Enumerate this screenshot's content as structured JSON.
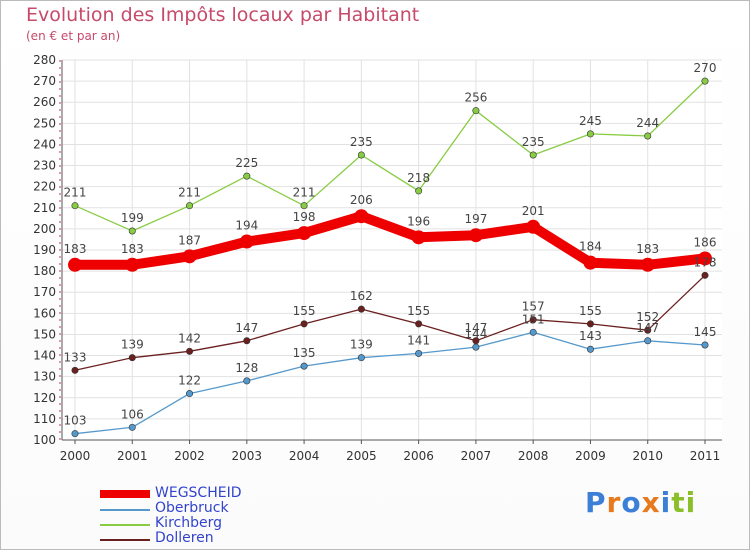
{
  "chart_data": {
    "type": "line",
    "title": "Evolution des Impôts locaux par Habitant",
    "subtitle": "(en € et par an)",
    "xlabel": "",
    "ylabel": "",
    "ylim": [
      100,
      280
    ],
    "yticks": [
      100,
      110,
      120,
      130,
      140,
      150,
      160,
      170,
      180,
      190,
      200,
      210,
      220,
      230,
      240,
      250,
      260,
      270,
      280
    ],
    "categories": [
      "2000",
      "2001",
      "2002",
      "2003",
      "2004",
      "2005",
      "2006",
      "2007",
      "2008",
      "2009",
      "2010",
      "2011"
    ],
    "series": [
      {
        "name": "WEGSCHEID",
        "color": "#ee0000",
        "values": [
          183,
          183,
          187,
          194,
          198,
          206,
          196,
          197,
          201,
          184,
          183,
          186
        ]
      },
      {
        "name": "Oberbruck",
        "color": "#5599cc",
        "values": [
          103,
          106,
          122,
          128,
          135,
          139,
          141,
          144,
          151,
          143,
          147,
          145
        ]
      },
      {
        "name": "Kirchberg",
        "color": "#88cc44",
        "values": [
          211,
          199,
          211,
          225,
          211,
          235,
          218,
          256,
          235,
          245,
          244,
          270
        ]
      },
      {
        "name": "Dolleren",
        "color": "#6b2020",
        "values": [
          133,
          139,
          142,
          147,
          155,
          162,
          155,
          147,
          157,
          155,
          152,
          178
        ]
      }
    ],
    "legend_position": "bottom-left"
  },
  "logo": {
    "text": "Proxiti",
    "letters": [
      "P",
      "r",
      "o",
      "x",
      "i",
      "t",
      "i"
    ],
    "colors": [
      "#3b7fd6",
      "#e67a1e",
      "#3b7fd6",
      "#e67a1e",
      "#3b7fd6",
      "#8abf2a",
      "#8abf2a"
    ]
  }
}
